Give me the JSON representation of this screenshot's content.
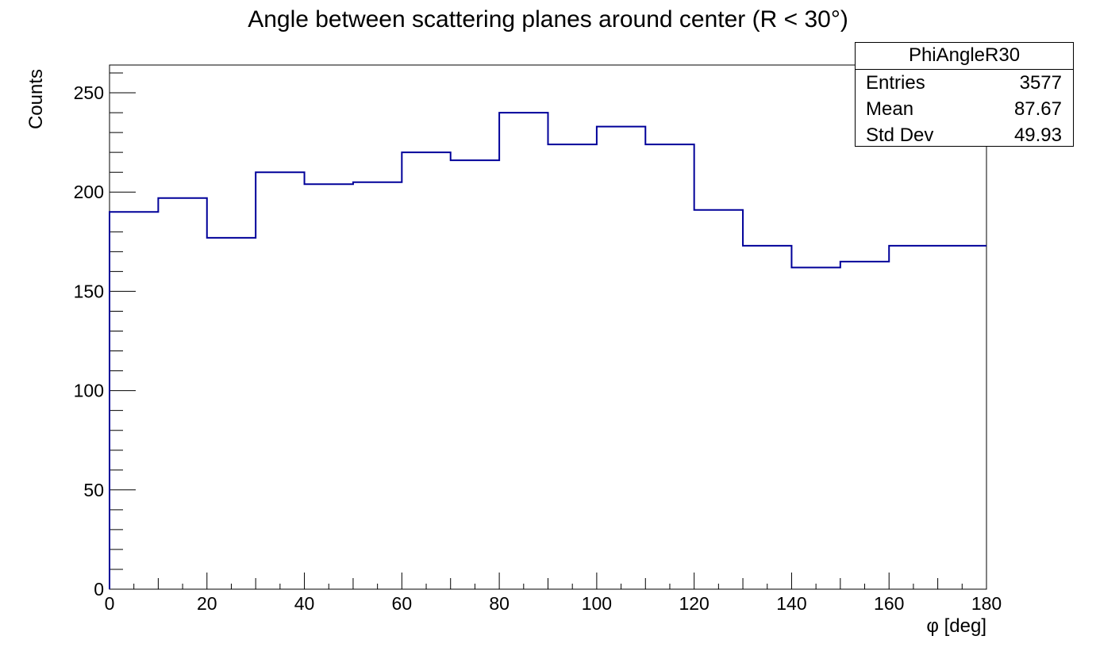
{
  "chart_data": {
    "type": "bar",
    "style": "step-histogram",
    "title": "Angle between scattering planes around center (R < 30°)",
    "xlabel": "φ [deg]",
    "ylabel": "Counts",
    "xlim": [
      0,
      180
    ],
    "ylim": [
      0,
      264
    ],
    "bin_edges": [
      0,
      10,
      20,
      30,
      40,
      50,
      60,
      70,
      80,
      90,
      100,
      110,
      120,
      130,
      140,
      150,
      160,
      170,
      180
    ],
    "values": [
      190,
      197,
      177,
      210,
      204,
      205,
      220,
      216,
      240,
      224,
      233,
      224,
      191,
      173,
      162,
      165,
      173,
      173
    ],
    "x_ticks": [
      0,
      20,
      40,
      60,
      80,
      100,
      120,
      140,
      160,
      180
    ],
    "y_ticks": [
      0,
      50,
      100,
      150,
      200,
      250
    ],
    "grid": false,
    "line_color": "#000099",
    "legend": {
      "placement": "top-right",
      "name": "PhiAngleR30",
      "stats": [
        {
          "label": "Entries",
          "value": "3577"
        },
        {
          "label": "Mean",
          "value": "87.67"
        },
        {
          "label": "Std Dev",
          "value": "49.93"
        }
      ]
    }
  }
}
